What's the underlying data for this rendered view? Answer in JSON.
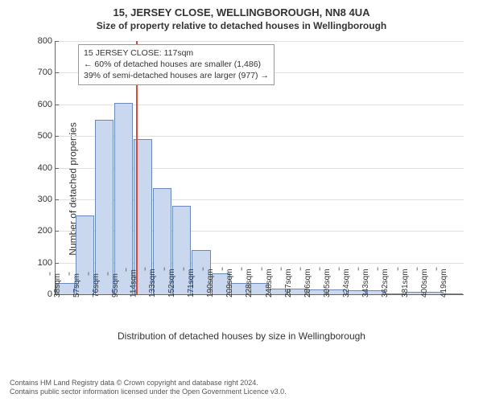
{
  "titles": {
    "main": "15, JERSEY CLOSE, WELLINGBOROUGH, NN8 4UA",
    "sub": "Size of property relative to detached houses in Wellingborough"
  },
  "chart": {
    "type": "histogram",
    "y_axis_label": "Number of detached properties",
    "x_axis_title": "Distribution of detached houses by size in Wellingborough",
    "ylim": [
      0,
      800
    ],
    "ytick_step": 100,
    "bar_color": "#c9d8ee",
    "bar_border": "#6a89b5",
    "background_color": "#ffffff",
    "grid_color": "#e0e0e0",
    "categories": [
      "38sqm",
      "57sqm",
      "76sqm",
      "95sqm",
      "114sqm",
      "133sqm",
      "152sqm",
      "171sqm",
      "190sqm",
      "209sqm",
      "228sqm",
      "248sqm",
      "267sqm",
      "286sqm",
      "305sqm",
      "324sqm",
      "343sqm",
      "362sqm",
      "381sqm",
      "400sqm",
      "419sqm"
    ],
    "values": [
      35,
      250,
      550,
      605,
      490,
      335,
      280,
      140,
      65,
      35,
      35,
      18,
      18,
      15,
      15,
      12,
      12,
      0,
      8,
      8,
      0
    ]
  },
  "marker": {
    "color": "#d94a3a",
    "position_category_index": 4.15
  },
  "annotation": {
    "line1": "15 JERSEY CLOSE: 117sqm",
    "line2": "← 60% of detached houses are smaller (1,486)",
    "line3": "39% of semi-detached houses are larger (977) →",
    "border_color": "#999999"
  },
  "footer": {
    "line1": "Contains HM Land Registry data © Crown copyright and database right 2024.",
    "line2": "Contains public sector information licensed under the Open Government Licence v3.0."
  }
}
